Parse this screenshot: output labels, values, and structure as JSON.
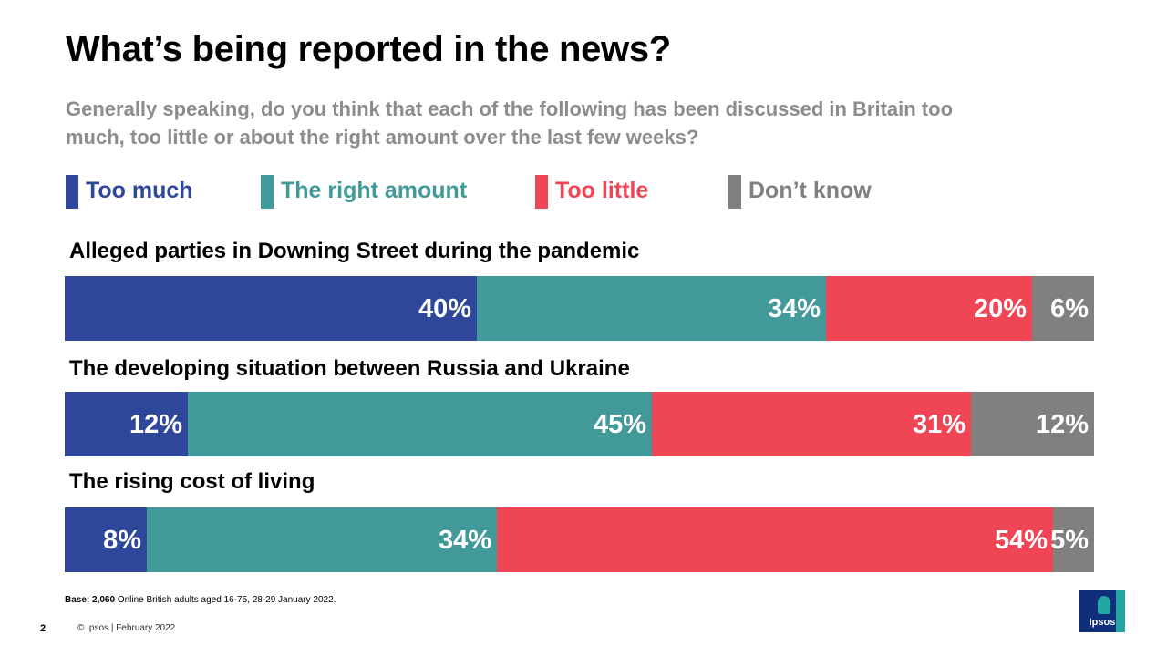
{
  "slide": {
    "title": "What’s being reported in the news?",
    "subtitle": "Generally speaking, do you think that each of the following has been discussed in Britain too much, too little or about the right amount over the last few weeks?",
    "footnote_bold": "Base: 2,060",
    "footnote_rest": " Online British adults aged 16-75, 28-29 January 2022.",
    "page_number": "2",
    "copyright": "© Ipsos | February 2022",
    "logo_text": "Ipsos"
  },
  "chart_data": {
    "type": "bar",
    "orientation": "horizontal",
    "stacked": true,
    "unit": "%",
    "legend_position": "top",
    "grid": false,
    "xlim": [
      0,
      100
    ],
    "categories": [
      "Alleged parties in Downing Street during the pandemic",
      "The developing situation between Russia and Ukraine",
      "The rising cost of living"
    ],
    "series": [
      {
        "name": "Too much",
        "color": "#2e479b",
        "values": [
          40,
          12,
          8
        ]
      },
      {
        "name": "The right amount",
        "color": "#41999a",
        "values": [
          34,
          45,
          34
        ]
      },
      {
        "name": "Too little",
        "color": "#f04555",
        "values": [
          20,
          31,
          54
        ]
      },
      {
        "name": "Don’t know",
        "color": "#808080",
        "values": [
          6,
          12,
          5
        ]
      }
    ]
  }
}
